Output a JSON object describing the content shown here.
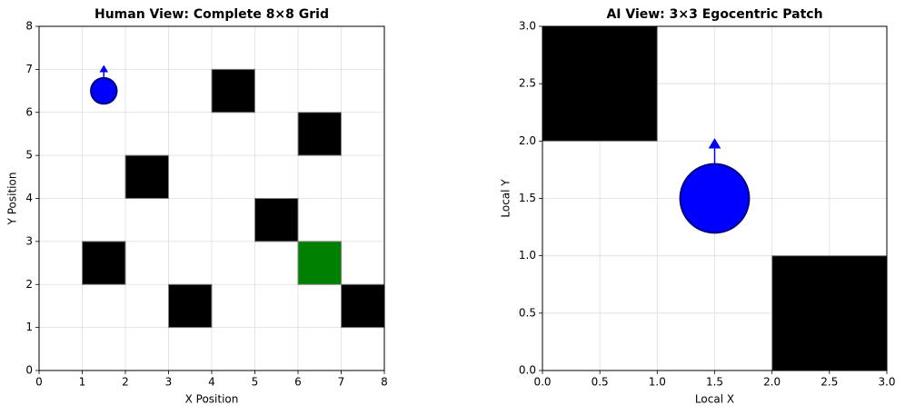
{
  "chart_data": [
    {
      "type": "grid",
      "title": "Human View: Complete 8×8 Grid",
      "xlabel": "X Position",
      "ylabel": "Y Position",
      "xlim": [
        0,
        8
      ],
      "ylim": [
        0,
        8
      ],
      "xticks": [
        0,
        1,
        2,
        3,
        4,
        5,
        6,
        7,
        8
      ],
      "yticks": [
        0,
        1,
        2,
        3,
        4,
        5,
        6,
        7,
        8
      ],
      "grid": true,
      "obstacles": {
        "x": [
          4,
          6,
          2,
          5,
          1,
          3,
          7
        ],
        "y": [
          6,
          5,
          4,
          3,
          2,
          1,
          1
        ],
        "color": "#000000"
      },
      "goal": {
        "x": [
          6
        ],
        "y": [
          2
        ],
        "color": "#008000"
      },
      "agent": {
        "x": 1.5,
        "y": 6.5,
        "radius": 0.3,
        "color": "#0000ff"
      }
    },
    {
      "type": "grid",
      "title": "AI View: 3×3 Egocentric Patch",
      "xlabel": "Local X",
      "ylabel": "Local Y",
      "xlim": [
        0,
        3
      ],
      "ylim": [
        0,
        3
      ],
      "xticks": [
        {
          "value": 0,
          "label": "0.0"
        },
        0.5,
        {
          "value": 1,
          "label": "1.0"
        },
        1.5,
        {
          "value": 2,
          "label": "2.0"
        },
        2.5,
        {
          "value": 3,
          "label": "3.0"
        }
      ],
      "yticks": [
        {
          "value": 0,
          "label": "0.0"
        },
        0.5,
        {
          "value": 1,
          "label": "1.0"
        },
        1.5,
        {
          "value": 2,
          "label": "2.0"
        },
        2.5,
        {
          "value": 3,
          "label": "3.0"
        }
      ],
      "grid": true,
      "obstacles": {
        "x": [
          0,
          2
        ],
        "y": [
          2,
          0
        ],
        "color": "#000000"
      },
      "agent": {
        "x": 1.5,
        "y": 1.5,
        "radius": 0.3,
        "color": "#0000ff"
      }
    }
  ]
}
